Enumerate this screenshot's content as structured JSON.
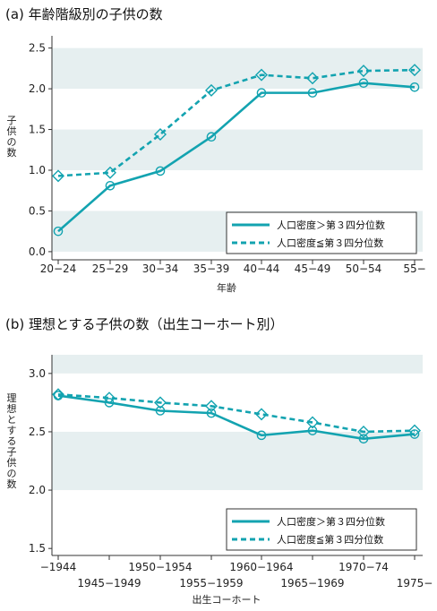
{
  "chart_data": [
    {
      "type": "line",
      "title": "(a) 年齢階級別の子供の数",
      "xlabel": "年齢",
      "ylabel": "子供の数",
      "categories": [
        "20−24",
        "25−29",
        "30−34",
        "35−39",
        "40−44",
        "45−49",
        "50−54",
        "55−"
      ],
      "ylim": [
        -0.1,
        2.65
      ],
      "yticks": [
        "0.0",
        "0.5",
        "1.0",
        "1.5",
        "2.0",
        "2.5"
      ],
      "series": [
        {
          "name": "人口密度＞第３四分位数",
          "style": "solid",
          "marker": "circle",
          "color": "#13a3b0",
          "values": [
            0.25,
            0.81,
            0.99,
            1.41,
            1.95,
            1.95,
            2.07,
            2.02
          ]
        },
        {
          "name": "人口密度≦第３四分位数",
          "style": "dashed",
          "marker": "diamond",
          "color": "#13a3b0",
          "values": [
            0.93,
            0.97,
            1.44,
            1.98,
            2.17,
            2.13,
            2.22,
            2.23
          ]
        }
      ],
      "legend": "bottom-right",
      "bands": "alternating shaded bands"
    },
    {
      "type": "line",
      "title": "(b) 理想とする子供の数（出生コーホート別）",
      "xlabel": "出生コーホート",
      "ylabel": "理想とする子供の数",
      "categories": [
        "−1944",
        "1945−1949",
        "1950−1954",
        "1955−1959",
        "1960−1964",
        "1965−1969",
        "1970−74",
        "1975−"
      ],
      "ylim": [
        1.44,
        3.16
      ],
      "yticks": [
        "1.5",
        "2.0",
        "2.5",
        "3.0"
      ],
      "series": [
        {
          "name": "人口密度＞第３四分位数",
          "style": "solid",
          "marker": "circle",
          "color": "#13a3b0",
          "values": [
            2.81,
            2.75,
            2.68,
            2.66,
            2.47,
            2.51,
            2.44,
            2.48
          ]
        },
        {
          "name": "人口密度≦第３四分位数",
          "style": "dashed",
          "marker": "diamond",
          "color": "#13a3b0",
          "values": [
            2.82,
            2.79,
            2.75,
            2.72,
            2.65,
            2.58,
            2.5,
            2.51
          ]
        }
      ],
      "legend": "bottom-right",
      "bands": "alternating shaded bands"
    }
  ]
}
